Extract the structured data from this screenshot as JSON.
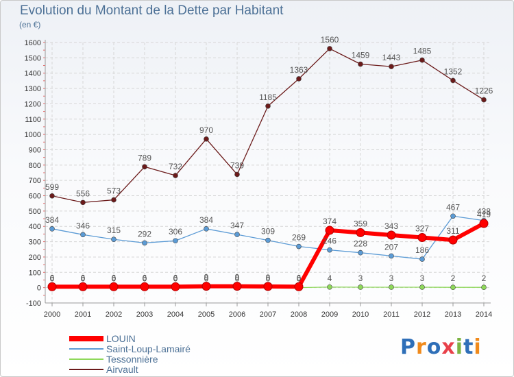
{
  "title": "Evolution du Montant de la Dette par Habitant",
  "unit_label": "(en €)",
  "logo": {
    "text": "Proxiti",
    "letter_colors": [
      "#2f6fb8",
      "#f08a1c",
      "#2f6fb8",
      "#e8404a",
      "#7cb342",
      "#2f6fb8",
      "#f08a1c"
    ]
  },
  "chart_data": {
    "type": "line",
    "x": [
      "2000",
      "2001",
      "2002",
      "2003",
      "2004",
      "2005",
      "2006",
      "2007",
      "2008",
      "2009",
      "2010",
      "2011",
      "2012",
      "2013",
      "2014"
    ],
    "ylim": [
      -100,
      1600
    ],
    "yticks": [
      "-100",
      "0",
      "100",
      "200",
      "300",
      "400",
      "500",
      "600",
      "700",
      "800",
      "900",
      "1000",
      "1100",
      "1200",
      "1300",
      "1400",
      "1500",
      "1600"
    ],
    "grid": true,
    "legend_position": "bottom-left",
    "series": [
      {
        "name": "Airvault",
        "color": "#6b1a1a",
        "values": [
          599,
          556,
          573,
          789,
          732,
          970,
          739,
          1185,
          1363,
          1560,
          1459,
          1443,
          1485,
          1352,
          1226
        ],
        "labels": [
          "599",
          "556",
          "573",
          "789",
          "732",
          "970",
          "739",
          "1185",
          "1363",
          "1560",
          "1459",
          "1443",
          "1485",
          "1352",
          "1226"
        ]
      },
      {
        "name": "Saint-Loup-Lamairé",
        "color": "#5b9bd5",
        "values": [
          384,
          346,
          315,
          292,
          306,
          384,
          347,
          309,
          269,
          246,
          228,
          207,
          186,
          467,
          438
        ],
        "labels": [
          "384",
          "346",
          "315",
          "292",
          "306",
          "384",
          "347",
          "309",
          "269",
          "246",
          "228",
          "207",
          "186",
          "467",
          "438"
        ]
      },
      {
        "name": "Tessonnière",
        "color": "#8ed85a",
        "values": [
          0,
          0,
          0,
          0,
          0,
          0,
          0,
          0,
          0,
          4,
          3,
          3,
          3,
          2,
          2
        ],
        "labels": [
          "0",
          "0",
          "0",
          "0",
          "0",
          "0",
          "0",
          "0",
          "0",
          "4",
          "3",
          "3",
          "3",
          "2",
          "2"
        ]
      },
      {
        "name": "LOUIN",
        "color": "#ff0000",
        "values": [
          6,
          6,
          6,
          6,
          6,
          9,
          9,
          8,
          6,
          374,
          359,
          343,
          327,
          311,
          419
        ],
        "labels": [
          "6",
          "6",
          "6",
          "6",
          "6",
          "9",
          "9",
          "8",
          "6",
          "374",
          "359",
          "343",
          "327",
          "311",
          "419"
        ]
      }
    ],
    "legend_order": [
      "LOUIN",
      "Saint-Loup-Lamairé",
      "Tessonnière",
      "Airvault"
    ]
  }
}
